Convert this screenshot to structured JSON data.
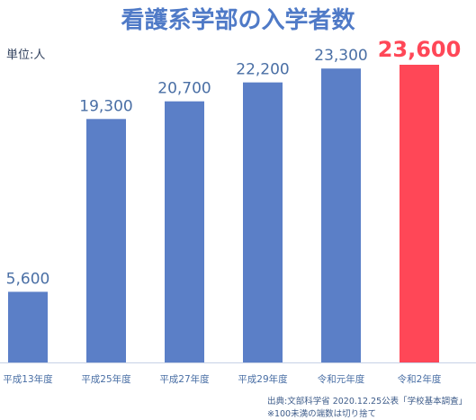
{
  "chart_data": {
    "type": "bar",
    "title": "看護系学部の入学者数",
    "unit_label": "単位:人",
    "categories": [
      "平成13年度",
      "平成25年度",
      "平成27年度",
      "平成29年度",
      "令和元年度",
      "令和2年度"
    ],
    "values": [
      5600,
      19300,
      20700,
      22200,
      23300,
      23600
    ],
    "value_labels": [
      "5,600",
      "19,300",
      "20,700",
      "22,200",
      "23,300",
      "23,600"
    ],
    "highlight_index": 5,
    "colors": {
      "bar": "#5b7fc7",
      "highlight": "#ff4757",
      "label": "#4a6fa5",
      "axis": "#4a6fa5"
    },
    "ylim": [
      0,
      23600
    ]
  },
  "source": {
    "line1": "出典:文部科学省 2020.12.25公表「学校基本調査」",
    "line2": "※100未満の端数は切り捨て"
  }
}
